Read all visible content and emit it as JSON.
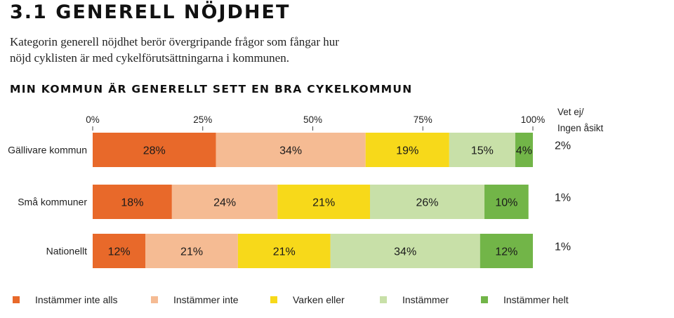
{
  "header": {
    "title": "3.1 GENERELL NÖJDHET",
    "intro_line1": "Kategorin generell nöjdhet berör övergripande frågor som fångar hur",
    "intro_line2": "nöjd cyklisten är med cykelförutsättningarna i kommunen."
  },
  "chart_data": {
    "type": "bar",
    "orientation": "horizontal",
    "stacked": true,
    "title": "MIN KOMMUN ÄR GENERELLT SETT EN BRA CYKELKOMMUN",
    "xlim": [
      0,
      100
    ],
    "xticks": [
      "0%",
      "25%",
      "50%",
      "75%",
      "100%"
    ],
    "xtick_values": [
      0,
      25,
      50,
      75,
      100
    ],
    "categories": [
      "Gällivare kommun",
      "Små kommuner",
      "Nationellt"
    ],
    "series": [
      {
        "name": "Instämmer inte alls",
        "color": "#E8692A",
        "values": [
          28,
          18,
          12
        ]
      },
      {
        "name": "Instämmer inte",
        "color": "#F5BB93",
        "values": [
          34,
          24,
          21
        ]
      },
      {
        "name": "Varken eller",
        "color": "#F7D91A",
        "values": [
          19,
          21,
          21
        ]
      },
      {
        "name": "Instämmer",
        "color": "#C8E0A8",
        "values": [
          15,
          26,
          34
        ]
      },
      {
        "name": "Instämmer helt",
        "color": "#72B548",
        "values": [
          4,
          10,
          12
        ]
      }
    ],
    "bar_labels": [
      [
        "28%",
        "34%",
        "19%",
        "15%",
        "4%"
      ],
      [
        "18%",
        "24%",
        "21%",
        "26%",
        "10%"
      ],
      [
        "12%",
        "21%",
        "21%",
        "34%",
        "12%"
      ]
    ],
    "side_column": {
      "label_line1": "Vet ej/",
      "label_line2": "Ingen åsikt",
      "values": [
        "2%",
        "1%",
        "1%"
      ]
    },
    "grid": false,
    "legend_position": "bottom"
  }
}
